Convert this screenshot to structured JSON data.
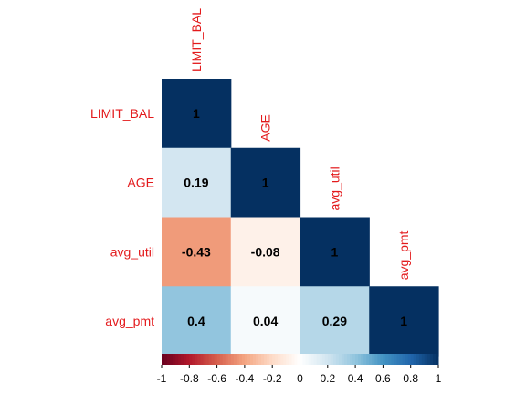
{
  "chart_data": {
    "type": "heatmap",
    "layout": "lower-triangle correlation matrix",
    "variables": [
      "LIMIT_BAL",
      "AGE",
      "avg_util",
      "avg_pmt"
    ],
    "matrix": [
      [
        1,
        0.19,
        -0.43,
        0.4
      ],
      [
        0.19,
        1,
        -0.08,
        0.04
      ],
      [
        -0.43,
        -0.08,
        1,
        0.29
      ],
      [
        0.4,
        0.04,
        0.29,
        1
      ]
    ],
    "cell_labels": [
      [
        "1",
        "",
        "",
        ""
      ],
      [
        "0.19",
        "1",
        "",
        ""
      ],
      [
        "-0.43",
        "-0.08",
        "1",
        ""
      ],
      [
        "0.4",
        "0.04",
        "0.29",
        "1"
      ]
    ],
    "colorbar": {
      "range": [
        -1,
        1
      ],
      "ticks": [
        -1,
        -0.8,
        -0.6,
        -0.4,
        -0.2,
        0,
        0.2,
        0.4,
        0.6,
        0.8,
        1
      ],
      "tick_labels": [
        "-1",
        "-0.8",
        "-0.6",
        "-0.4",
        "-0.2",
        "0",
        "0.2",
        "0.4",
        "0.6",
        "0.8",
        "1"
      ],
      "placement": "bottom",
      "palette": [
        "#67001F",
        "#B2182B",
        "#D6604D",
        "#F4A582",
        "#FDDBC7",
        "#FFFFFF",
        "#D1E5F0",
        "#92C5DE",
        "#4393C3",
        "#2166AC",
        "#053061"
      ]
    },
    "label_color": "#E31A1C",
    "value_label_color": "#000000"
  }
}
